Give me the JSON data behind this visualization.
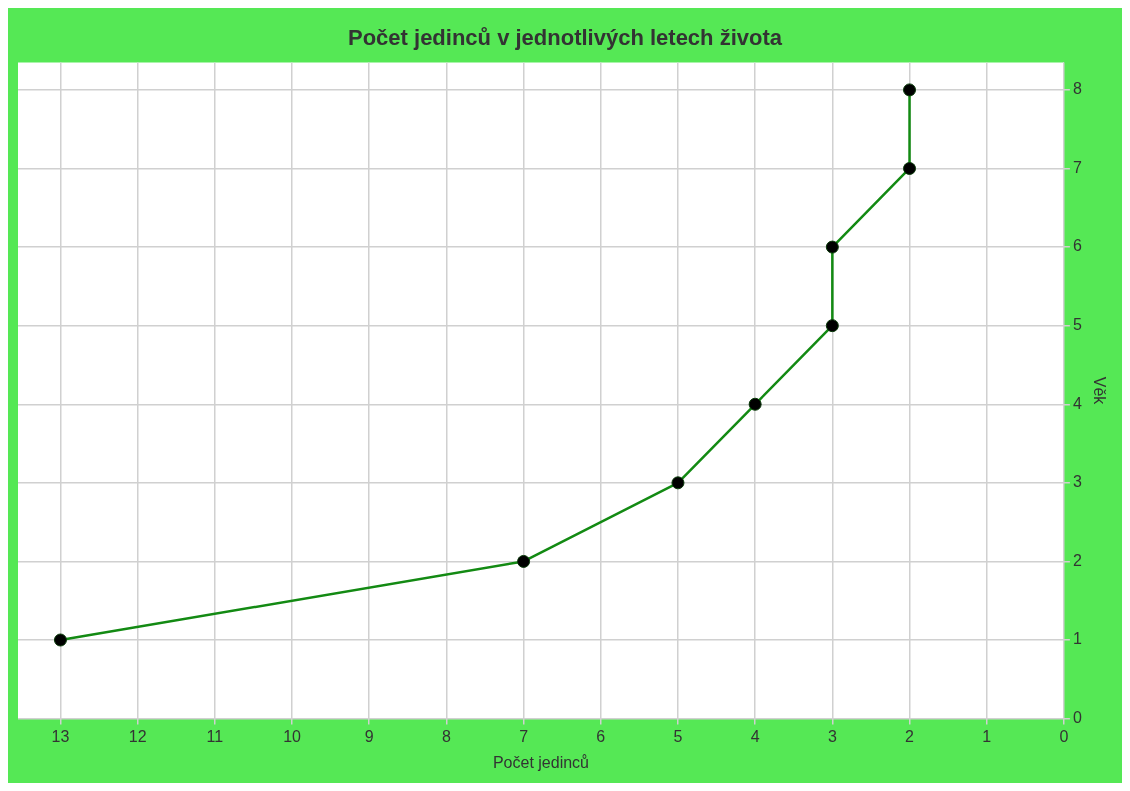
{
  "chart_data": {
    "type": "line",
    "title": "Počet jedinců v jednotlivých letech života",
    "xlabel": "Počet jedinců",
    "ylabel": "Věk",
    "x": [
      13,
      7,
      5,
      4,
      3,
      3,
      2,
      2
    ],
    "series": [
      {
        "color": "#138a13",
        "values": [
          1,
          2,
          3,
          4,
          5,
          6,
          7,
          8
        ]
      }
    ],
    "xlim": [
      13.55,
      0
    ],
    "xticks": [
      13,
      12,
      11,
      10,
      9,
      8,
      7,
      6,
      5,
      4,
      3,
      2,
      1,
      0
    ],
    "ylim": [
      0,
      8.35
    ],
    "yticks": [
      0,
      1,
      2,
      3,
      4,
      5,
      6,
      7,
      8
    ],
    "grid": true,
    "marker": "circle",
    "line_style": "solid"
  }
}
